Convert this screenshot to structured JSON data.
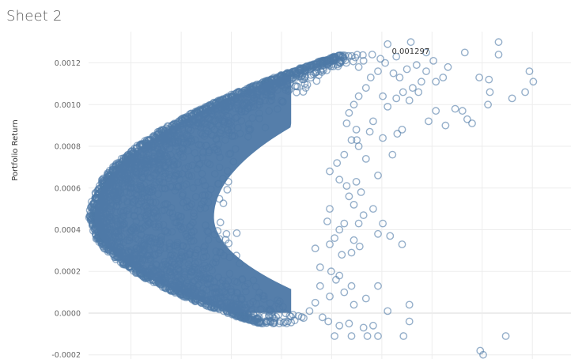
{
  "sheet": {
    "title": "Sheet 2"
  },
  "colors": {
    "point": "#4e79a7",
    "grid": "#ededed",
    "zero_line": "#d9d9d9"
  },
  "chart_data": {
    "type": "scatter",
    "title": "",
    "xlabel": "",
    "ylabel": "Portfolio Return",
    "ylim": [
      -0.00022,
      0.00135
    ],
    "xlim": [
      0,
      1
    ],
    "ytick_labels": [
      "-0.0002",
      "0.0000",
      "0.0002",
      "0.0004",
      "0.0006",
      "0.0008",
      "0.0010",
      "0.0012"
    ],
    "ytick_values": [
      -0.0002,
      0.0,
      0.0002,
      0.0004,
      0.0006,
      0.0008,
      0.001,
      0.0012
    ],
    "xticks": [
      0.088,
      0.192,
      0.296,
      0.4,
      0.504,
      0.608,
      0.712,
      0.816,
      0.92
    ],
    "grid": true,
    "marker": "hollow-circle",
    "dense_region": {
      "description_note": "",
      "frontier_vertex_x": 0.0,
      "frontier_vertex_y": 0.00046,
      "frontier_upper_point": [
        0.52,
        0.00124
      ],
      "frontier_lower_point": [
        0.35,
        -5e-05
      ]
    },
    "outliers": [
      [
        0.62,
        0.00129
      ],
      [
        0.668,
        0.0013
      ],
      [
        0.7,
        0.00125
      ],
      [
        0.78,
        0.00125
      ],
      [
        0.85,
        0.0013
      ],
      [
        0.85,
        0.00124
      ],
      [
        0.914,
        0.00116
      ],
      [
        0.922,
        0.00111
      ],
      [
        0.905,
        0.00106
      ],
      [
        0.878,
        0.00103
      ],
      [
        0.81,
        0.00113
      ],
      [
        0.83,
        0.00112
      ],
      [
        0.832,
        0.00106
      ],
      [
        0.828,
        0.001
      ],
      [
        0.76,
        0.00098
      ],
      [
        0.775,
        0.00097
      ],
      [
        0.785,
        0.00093
      ],
      [
        0.795,
        0.00091
      ],
      [
        0.74,
        0.0009
      ],
      [
        0.65,
        0.00088
      ],
      [
        0.64,
        0.00086
      ],
      [
        0.705,
        0.00092
      ],
      [
        0.72,
        0.00097
      ],
      [
        0.665,
        0.00102
      ],
      [
        0.684,
        0.00106
      ],
      [
        0.59,
        0.00092
      ],
      [
        0.583,
        0.00087
      ],
      [
        0.556,
        0.00083
      ],
      [
        0.56,
        0.0008
      ],
      [
        0.61,
        0.00084
      ],
      [
        0.575,
        0.00074
      ],
      [
        0.555,
        0.00063
      ],
      [
        0.565,
        0.00058
      ],
      [
        0.6,
        0.00066
      ],
      [
        0.63,
        0.00076
      ],
      [
        0.59,
        0.0005
      ],
      [
        0.57,
        0.00047
      ],
      [
        0.56,
        0.00043
      ],
      [
        0.6,
        0.00038
      ],
      [
        0.55,
        0.00035
      ],
      [
        0.562,
        0.00032
      ],
      [
        0.545,
        0.00029
      ],
      [
        0.525,
        0.00028
      ],
      [
        0.65,
        0.00033
      ],
      [
        0.61,
        0.00043
      ],
      [
        0.625,
        0.00037
      ],
      [
        0.52,
        0.00018
      ],
      [
        0.545,
        0.00013
      ],
      [
        0.53,
        0.0001
      ],
      [
        0.55,
        4e-05
      ],
      [
        0.6,
        0.00013
      ],
      [
        0.575,
        7e-05
      ],
      [
        0.62,
        1e-05
      ],
      [
        0.665,
        4e-05
      ],
      [
        0.665,
        -4e-05
      ],
      [
        0.653,
        -0.00011
      ],
      [
        0.865,
        -0.00011
      ],
      [
        0.812,
        -0.00018
      ],
      [
        0.818,
        -0.0002
      ],
      [
        0.57,
        -7e-05
      ],
      [
        0.578,
        -0.00011
      ],
      [
        0.6,
        -0.00011
      ],
      [
        0.59,
        -6e-05
      ],
      [
        0.545,
        -0.00011
      ],
      [
        0.54,
        -5e-05
      ],
      [
        0.52,
        -6e-05
      ],
      [
        0.51,
        -0.00011
      ],
      [
        0.497,
        -4e-05
      ],
      [
        0.485,
        -2e-05
      ],
      [
        0.458,
        1e-05
      ],
      [
        0.47,
        5e-05
      ],
      [
        0.5,
        8e-05
      ],
      [
        0.48,
        0.00013
      ],
      [
        0.513,
        0.00016
      ],
      [
        0.503,
        0.0002
      ],
      [
        0.48,
        0.00022
      ],
      [
        0.47,
        0.00031
      ],
      [
        0.5,
        0.00033
      ],
      [
        0.51,
        0.00036
      ],
      [
        0.52,
        0.0004
      ],
      [
        0.53,
        0.00043
      ],
      [
        0.495,
        0.00044
      ],
      [
        0.5,
        0.0005
      ],
      [
        0.55,
        0.00052
      ],
      [
        0.54,
        0.00056
      ],
      [
        0.535,
        0.00061
      ],
      [
        0.52,
        0.00064
      ],
      [
        0.5,
        0.00068
      ],
      [
        0.515,
        0.00072
      ],
      [
        0.53,
        0.00076
      ],
      [
        0.545,
        0.00083
      ],
      [
        0.555,
        0.00088
      ],
      [
        0.535,
        0.00091
      ],
      [
        0.54,
        0.00096
      ],
      [
        0.55,
        0.001
      ],
      [
        0.56,
        0.00104
      ],
      [
        0.575,
        0.00108
      ],
      [
        0.585,
        0.00113
      ],
      [
        0.6,
        0.00116
      ],
      [
        0.615,
        0.0012
      ],
      [
        0.638,
        0.00123
      ],
      [
        0.56,
        0.00118
      ],
      [
        0.57,
        0.00121
      ],
      [
        0.588,
        0.00124
      ],
      [
        0.605,
        0.00122
      ],
      [
        0.632,
        0.00115
      ],
      [
        0.645,
        0.00113
      ],
      [
        0.66,
        0.00117
      ],
      [
        0.68,
        0.00119
      ],
      [
        0.7,
        0.00116
      ],
      [
        0.72,
        0.00111
      ],
      [
        0.735,
        0.00113
      ],
      [
        0.745,
        0.00118
      ],
      [
        0.715,
        0.00121
      ],
      [
        0.69,
        0.00111
      ],
      [
        0.672,
        0.00108
      ],
      [
        0.652,
        0.00106
      ],
      [
        0.638,
        0.00103
      ],
      [
        0.62,
        0.00099
      ],
      [
        0.61,
        0.00104
      ]
    ],
    "annotations": [
      {
        "text": "0.001297",
        "x": 0.668,
        "y": 0.001297
      }
    ]
  }
}
